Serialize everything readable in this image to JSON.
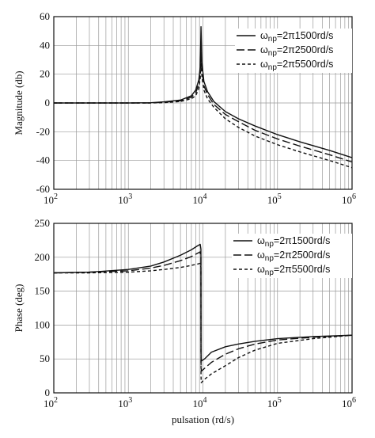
{
  "chart_data": [
    {
      "type": "line",
      "xscale": "log",
      "xlim": [
        100,
        1000000
      ],
      "ylim": [
        -60,
        60
      ],
      "yticks": [
        -60,
        -40,
        -20,
        0,
        20,
        40,
        60
      ],
      "xticks": [
        {
          "base": "10",
          "exp": "2"
        },
        {
          "base": "10",
          "exp": "3"
        },
        {
          "base": "10",
          "exp": "4"
        },
        {
          "base": "10",
          "exp": "5"
        },
        {
          "base": "10",
          "exp": "6"
        }
      ],
      "xlabel": "",
      "ylabel": "Magnitude (db)",
      "grid": true,
      "legend": "top-right",
      "series": [
        {
          "name_main": "ω",
          "name_sub": "np",
          "name_rest": "=2π1500rd/s",
          "dash": "",
          "x": [
            100,
            500,
            1000,
            2000,
            3000,
            5000,
            7000,
            8000,
            8800,
            9200,
            9425,
            9700,
            10300,
            11500,
            14000,
            20000,
            30000,
            50000,
            100000,
            200000,
            500000,
            1000000
          ],
          "y": [
            0,
            0,
            0,
            0.2,
            0.8,
            2,
            5,
            9,
            16,
            25,
            53,
            28,
            15,
            8,
            1,
            -6,
            -11,
            -16,
            -22,
            -27,
            -33,
            -38
          ]
        },
        {
          "name_main": "ω",
          "name_sub": "np",
          "name_rest": "=2π2500rd/s",
          "dash": "10,4",
          "x": [
            100,
            500,
            1000,
            2000,
            3000,
            5000,
            7000,
            8000,
            8800,
            9200,
            9425,
            9700,
            10300,
            11500,
            14000,
            20000,
            30000,
            50000,
            100000,
            200000,
            500000,
            1000000
          ],
          "y": [
            0,
            0,
            0,
            0,
            0.5,
            1.5,
            4,
            7,
            13,
            21,
            40,
            22,
            12,
            6,
            -1,
            -8,
            -13,
            -19,
            -25,
            -30,
            -36,
            -41
          ]
        },
        {
          "name_main": "ω",
          "name_sub": "np",
          "name_rest": "=2π5500rd/s",
          "dash": "4,3",
          "x": [
            100,
            500,
            1000,
            2000,
            3000,
            5000,
            7000,
            8000,
            8800,
            9200,
            9425,
            9700,
            10300,
            11500,
            14000,
            20000,
            30000,
            50000,
            100000,
            200000,
            500000,
            1000000
          ],
          "y": [
            0,
            0,
            0,
            0,
            0.2,
            1,
            3,
            5,
            10,
            17,
            30,
            18,
            9,
            3,
            -3,
            -11,
            -17,
            -23,
            -29,
            -34,
            -40,
            -45
          ]
        }
      ]
    },
    {
      "type": "line",
      "xscale": "log",
      "xlim": [
        100,
        1000000
      ],
      "ylim": [
        0,
        250
      ],
      "yticks": [
        0,
        50,
        100,
        150,
        200,
        250
      ],
      "xticks": [
        {
          "base": "10",
          "exp": "2"
        },
        {
          "base": "10",
          "exp": "3"
        },
        {
          "base": "10",
          "exp": "4"
        },
        {
          "base": "10",
          "exp": "5"
        },
        {
          "base": "10",
          "exp": "6"
        }
      ],
      "xlabel": "pulsation (rd/s)",
      "ylabel": "Phase (deg)",
      "grid": true,
      "legend": "top-right",
      "series": [
        {
          "name_main": "ω",
          "name_sub": "np",
          "name_rest": "=2π1500rd/s",
          "dash": "",
          "x": [
            100,
            300,
            1000,
            2000,
            3000,
            5000,
            7000,
            8500,
            9200,
            9400,
            9425,
            9500,
            10500,
            13000,
            20000,
            30000,
            50000,
            100000,
            300000,
            1000000
          ],
          "y": [
            177,
            178,
            182,
            187,
            193,
            203,
            211,
            217,
            219,
            212,
            60,
            47,
            50,
            60,
            68,
            72,
            76,
            80,
            83,
            85
          ]
        },
        {
          "name_main": "ω",
          "name_sub": "np",
          "name_rest": "=2π2500rd/s",
          "dash": "10,4",
          "x": [
            100,
            300,
            1000,
            2000,
            3000,
            5000,
            7000,
            8500,
            9200,
            9400,
            9425,
            9500,
            10500,
            13000,
            20000,
            30000,
            50000,
            100000,
            300000,
            1000000
          ],
          "y": [
            177,
            178,
            180,
            184,
            188,
            195,
            201,
            206,
            208,
            200,
            45,
            32,
            36,
            45,
            57,
            65,
            72,
            78,
            82,
            85
          ]
        },
        {
          "name_main": "ω",
          "name_sub": "np",
          "name_rest": "=2π5500rd/s",
          "dash": "4,3",
          "x": [
            100,
            300,
            1000,
            2000,
            3000,
            5000,
            7000,
            8500,
            9200,
            9400,
            9425,
            9500,
            10500,
            13000,
            20000,
            30000,
            50000,
            100000,
            300000,
            1000000
          ],
          "y": [
            177,
            177,
            178,
            180,
            182,
            185,
            188,
            190,
            191,
            185,
            25,
            15,
            20,
            28,
            40,
            52,
            63,
            73,
            80,
            85
          ]
        }
      ]
    }
  ]
}
